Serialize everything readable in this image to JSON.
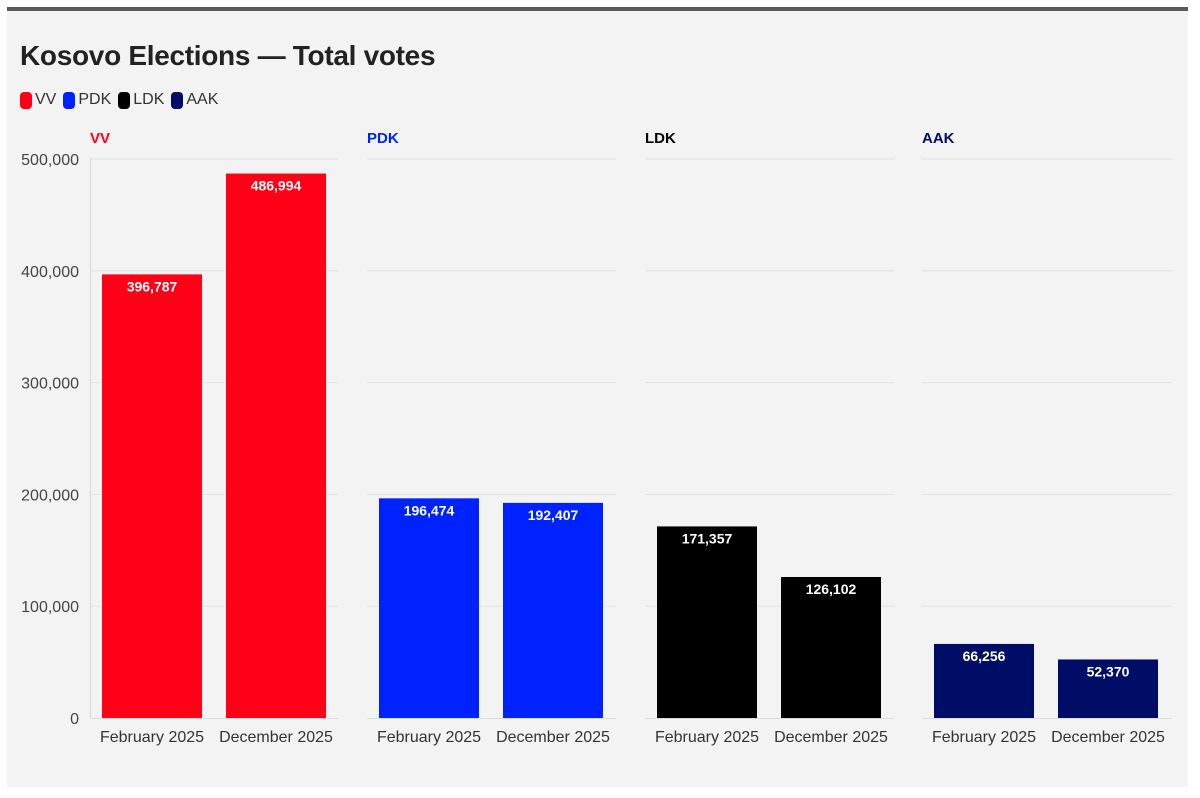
{
  "chart_data": {
    "type": "bar",
    "title": "Kosovo Elections — Total votes",
    "categories": [
      "February 2025",
      "December 2025"
    ],
    "ylim": [
      0,
      500000
    ],
    "yticks": [
      0,
      100000,
      200000,
      300000,
      400000,
      500000
    ],
    "ytick_labels": [
      "0",
      "100,000",
      "200,000",
      "300,000",
      "400,000",
      "500,000"
    ],
    "legend_position": "top-left",
    "grid": true,
    "series": [
      {
        "name": "VV",
        "color": "#ff0016",
        "values": [
          396787,
          486994
        ],
        "value_labels": [
          "396,787",
          "486,994"
        ]
      },
      {
        "name": "PDK",
        "color": "#0022ff",
        "values": [
          196474,
          192407
        ],
        "value_labels": [
          "196,474",
          "192,407"
        ]
      },
      {
        "name": "LDK",
        "color": "#000000",
        "values": [
          171357,
          126102
        ],
        "value_labels": [
          "171,357",
          "126,102"
        ]
      },
      {
        "name": "AAK",
        "color": "#000d66",
        "values": [
          66256,
          52370
        ],
        "value_labels": [
          "66,256",
          "52,370"
        ]
      }
    ]
  }
}
